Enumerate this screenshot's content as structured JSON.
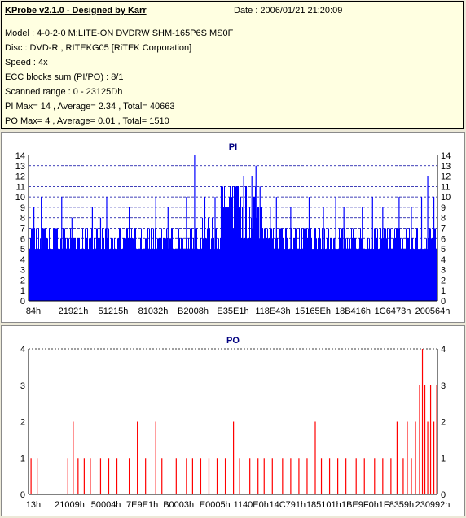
{
  "header": {
    "title": "KProbe v2.1.0 - Designed by Karr",
    "date": "Date : 2006/01/21 21:20:09",
    "lines": [
      "Model : 4-0-2-0 M:LITE-ON DVDRW SHM-165P6S MS0F",
      "Disc : DVD-R , RITEKG05 [RiTEK Corporation]",
      "Speed : 4x",
      "ECC blocks sum (PI/PO) : 8/1",
      "Scanned range : 0 - 23125Dh",
      "PI Max= 14 , Average= 2.34 , Total= 40663",
      "PO Max= 4 , Average= 0.01 , Total= 1510"
    ]
  },
  "colors": {
    "bars_pi": "#0000ff",
    "bars_po": "#ff0000",
    "title_text": "#000080",
    "panel_bg": "#ffffe1",
    "gridline": "#0000a0"
  },
  "chart_data": [
    {
      "id": "pi",
      "type": "bar",
      "title": "PI",
      "ylim": [
        0,
        14
      ],
      "yticks": [
        0,
        1,
        2,
        3,
        4,
        5,
        6,
        7,
        8,
        9,
        10,
        11,
        12,
        13,
        14
      ],
      "xticklabels": [
        "84h",
        "21921h",
        "51215h",
        "81032h",
        "B2008h",
        "E35E1h",
        "118E43h",
        "15165Eh",
        "18B416h",
        "1C6473h",
        "200564h"
      ],
      "grid": true,
      "baseline_levels": [
        {
          "from": 0.0,
          "to": 0.18,
          "min": 5,
          "max": 7
        },
        {
          "from": 0.18,
          "to": 0.4,
          "min": 5,
          "max": 7
        },
        {
          "from": 0.4,
          "to": 0.47,
          "min": 5,
          "max": 8
        },
        {
          "from": 0.47,
          "to": 0.58,
          "min": 6,
          "max": 11
        },
        {
          "from": 0.58,
          "to": 1.0,
          "min": 5,
          "max": 7
        }
      ],
      "peaks": [
        {
          "pos": 0.012,
          "value": 9
        },
        {
          "pos": 0.03,
          "value": 10
        },
        {
          "pos": 0.08,
          "value": 10
        },
        {
          "pos": 0.105,
          "value": 8
        },
        {
          "pos": 0.155,
          "value": 9
        },
        {
          "pos": 0.175,
          "value": 8
        },
        {
          "pos": 0.19,
          "value": 10
        },
        {
          "pos": 0.245,
          "value": 9
        },
        {
          "pos": 0.31,
          "value": 10
        },
        {
          "pos": 0.34,
          "value": 9
        },
        {
          "pos": 0.385,
          "value": 10
        },
        {
          "pos": 0.405,
          "value": 14
        },
        {
          "pos": 0.43,
          "value": 10
        },
        {
          "pos": 0.455,
          "value": 10
        },
        {
          "pos": 0.47,
          "value": 11
        },
        {
          "pos": 0.49,
          "value": 9
        },
        {
          "pos": 0.505,
          "value": 10
        },
        {
          "pos": 0.525,
          "value": 12
        },
        {
          "pos": 0.545,
          "value": 12
        },
        {
          "pos": 0.555,
          "value": 13
        },
        {
          "pos": 0.565,
          "value": 11
        },
        {
          "pos": 0.59,
          "value": 9
        },
        {
          "pos": 0.605,
          "value": 10
        },
        {
          "pos": 0.64,
          "value": 9
        },
        {
          "pos": 0.685,
          "value": 10
        },
        {
          "pos": 0.72,
          "value": 9
        },
        {
          "pos": 0.75,
          "value": 10
        },
        {
          "pos": 0.77,
          "value": 9
        },
        {
          "pos": 0.815,
          "value": 9
        },
        {
          "pos": 0.84,
          "value": 10
        },
        {
          "pos": 0.865,
          "value": 9
        },
        {
          "pos": 0.905,
          "value": 10
        },
        {
          "pos": 0.935,
          "value": 9
        },
        {
          "pos": 0.96,
          "value": 10
        },
        {
          "pos": 0.975,
          "value": 12
        },
        {
          "pos": 0.99,
          "value": 10
        }
      ]
    },
    {
      "id": "po",
      "type": "bar",
      "title": "PO",
      "ylim": [
        0,
        4
      ],
      "yticks": [
        0,
        1,
        2,
        3,
        4
      ],
      "xticklabels": [
        "13h",
        "21009h",
        "50004h",
        "7E9E1h",
        "B0003h",
        "E0005h",
        "1140E0h",
        "14C791h",
        "185101h",
        "1BE9F0h",
        "1F8359h",
        "230992h"
      ],
      "grid": false,
      "spikes": [
        {
          "pos": 0.005,
          "value": 1
        },
        {
          "pos": 0.02,
          "value": 1
        },
        {
          "pos": 0.095,
          "value": 1
        },
        {
          "pos": 0.108,
          "value": 2
        },
        {
          "pos": 0.12,
          "value": 1
        },
        {
          "pos": 0.135,
          "value": 1
        },
        {
          "pos": 0.15,
          "value": 1
        },
        {
          "pos": 0.175,
          "value": 1
        },
        {
          "pos": 0.195,
          "value": 1
        },
        {
          "pos": 0.215,
          "value": 1
        },
        {
          "pos": 0.245,
          "value": 1
        },
        {
          "pos": 0.265,
          "value": 2
        },
        {
          "pos": 0.285,
          "value": 1
        },
        {
          "pos": 0.31,
          "value": 2
        },
        {
          "pos": 0.325,
          "value": 1
        },
        {
          "pos": 0.36,
          "value": 1
        },
        {
          "pos": 0.385,
          "value": 1
        },
        {
          "pos": 0.4,
          "value": 1
        },
        {
          "pos": 0.42,
          "value": 1
        },
        {
          "pos": 0.44,
          "value": 1
        },
        {
          "pos": 0.46,
          "value": 1
        },
        {
          "pos": 0.48,
          "value": 1
        },
        {
          "pos": 0.5,
          "value": 2
        },
        {
          "pos": 0.515,
          "value": 1
        },
        {
          "pos": 0.54,
          "value": 1
        },
        {
          "pos": 0.56,
          "value": 1
        },
        {
          "pos": 0.575,
          "value": 1
        },
        {
          "pos": 0.595,
          "value": 1
        },
        {
          "pos": 0.62,
          "value": 1
        },
        {
          "pos": 0.64,
          "value": 1
        },
        {
          "pos": 0.66,
          "value": 1
        },
        {
          "pos": 0.68,
          "value": 1
        },
        {
          "pos": 0.7,
          "value": 2
        },
        {
          "pos": 0.715,
          "value": 1
        },
        {
          "pos": 0.735,
          "value": 1
        },
        {
          "pos": 0.755,
          "value": 1
        },
        {
          "pos": 0.775,
          "value": 1
        },
        {
          "pos": 0.8,
          "value": 1
        },
        {
          "pos": 0.82,
          "value": 1
        },
        {
          "pos": 0.845,
          "value": 1
        },
        {
          "pos": 0.865,
          "value": 1
        },
        {
          "pos": 0.885,
          "value": 1
        },
        {
          "pos": 0.9,
          "value": 2
        },
        {
          "pos": 0.915,
          "value": 1
        },
        {
          "pos": 0.925,
          "value": 2
        },
        {
          "pos": 0.935,
          "value": 1
        },
        {
          "pos": 0.945,
          "value": 2
        },
        {
          "pos": 0.955,
          "value": 3
        },
        {
          "pos": 0.962,
          "value": 4
        },
        {
          "pos": 0.968,
          "value": 3
        },
        {
          "pos": 0.975,
          "value": 2
        },
        {
          "pos": 0.982,
          "value": 3
        },
        {
          "pos": 0.99,
          "value": 2
        },
        {
          "pos": 0.997,
          "value": 3
        }
      ]
    }
  ]
}
